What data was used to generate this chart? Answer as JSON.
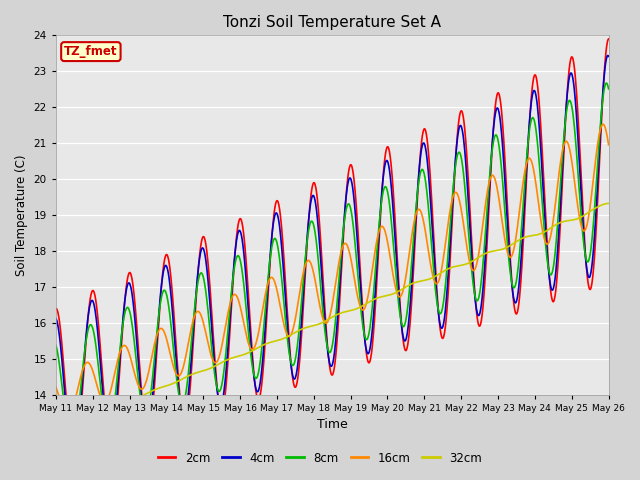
{
  "title": "Tonzi Soil Temperature Set A",
  "xlabel": "Time",
  "ylabel": "Soil Temperature (C)",
  "ylim": [
    14.0,
    24.0
  ],
  "yticks": [
    14.0,
    15.0,
    16.0,
    17.0,
    18.0,
    19.0,
    20.0,
    21.0,
    22.0,
    23.0,
    24.0
  ],
  "date_labels": [
    "May 11",
    "May 12",
    "May 13",
    "May 14",
    "May 15",
    "May 16",
    "May 17",
    "May 18",
    "May 19",
    "May 20",
    "May 21",
    "May 22",
    "May 23",
    "May 24",
    "May 25",
    "May 26"
  ],
  "legend_labels": [
    "2cm",
    "4cm",
    "8cm",
    "16cm",
    "32cm"
  ],
  "legend_colors": [
    "#ff0000",
    "#0000cc",
    "#00bb00",
    "#ff8800",
    "#cccc00"
  ],
  "annotation_text": "TZ_fmet",
  "annotation_color": "#cc0000",
  "annotation_bg": "#ffffcc",
  "line_width": 1.2,
  "fig_bg_color": "#d4d4d4",
  "plot_bg_color": "#e8e8e8",
  "n_points": 1500,
  "days": 15
}
